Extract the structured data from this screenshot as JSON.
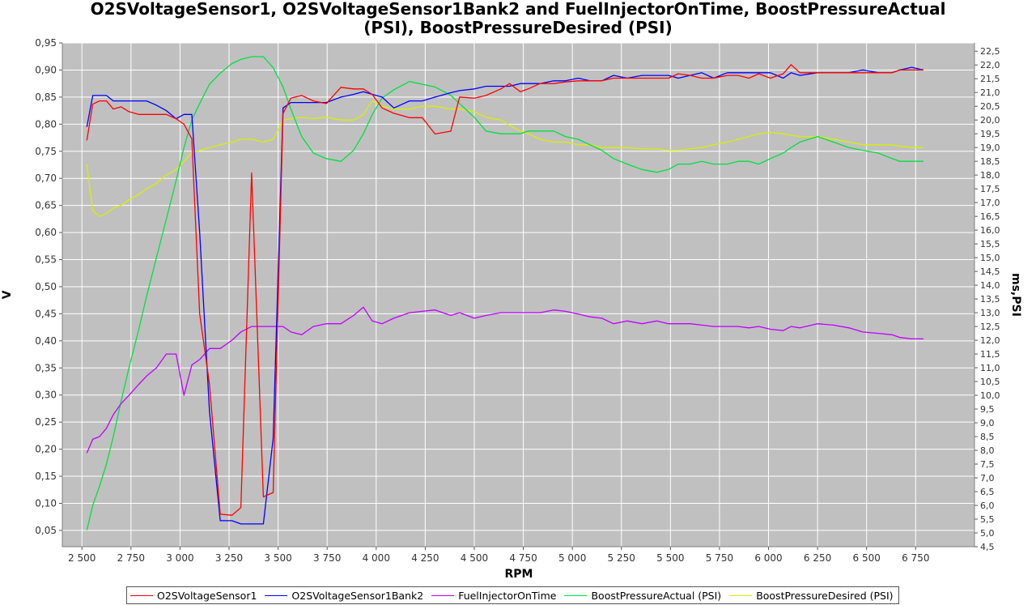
{
  "chart_data": {
    "type": "line",
    "title_line1": "O2SVoltageSensor1, O2SVoltageSensor1Bank2 and FuelInjectorOnTime, BoostPressureActual",
    "title_line2": "(PSI), BoostPressureDesired (PSI)",
    "xlabel": "RPM",
    "ylabel_left": "V",
    "ylabel_right": "ms,PSI",
    "xlim": [
      2400,
      7050
    ],
    "ylim_left": [
      0.02,
      0.95
    ],
    "ylim_right": [
      4.5,
      22.8
    ],
    "x_ticks": [
      2500,
      2750,
      3000,
      3250,
      3500,
      3750,
      4000,
      4250,
      4500,
      4750,
      5000,
      5250,
      5500,
      5750,
      6000,
      6250,
      6500,
      6750
    ],
    "x_tick_labels": [
      "2 500",
      "2 750",
      "3 000",
      "3 250",
      "3 500",
      "3 750",
      "4 000",
      "4 250",
      "4 500",
      "4 750",
      "5 000",
      "5 250",
      "5 500",
      "5 750",
      "6 000",
      "6 250",
      "6 500",
      "6 750"
    ],
    "y_left_ticks": [
      0.05,
      0.1,
      0.15,
      0.2,
      0.25,
      0.3,
      0.35,
      0.4,
      0.45,
      0.5,
      0.55,
      0.6,
      0.65,
      0.7,
      0.75,
      0.8,
      0.85,
      0.9,
      0.95
    ],
    "y_left_tick_labels": [
      "0,05",
      "0,10",
      "0,15",
      "0,20",
      "0,25",
      "0,30",
      "0,35",
      "0,40",
      "0,45",
      "0,50",
      "0,55",
      "0,60",
      "0,65",
      "0,70",
      "0,75",
      "0,80",
      "0,85",
      "0,90",
      "0,95"
    ],
    "y_right_ticks": [
      4.5,
      5.0,
      5.5,
      6.0,
      6.5,
      7.0,
      7.5,
      8.0,
      8.5,
      9.0,
      9.5,
      10.0,
      10.5,
      11.0,
      11.5,
      12.0,
      12.5,
      13.0,
      13.5,
      14.0,
      14.5,
      15.0,
      15.5,
      16.0,
      16.5,
      17.0,
      17.5,
      18.0,
      18.5,
      19.0,
      19.5,
      20.0,
      20.5,
      21.0,
      21.5,
      22.0,
      22.5
    ],
    "y_right_tick_labels": [
      "4,5",
      "5,0",
      "5,5",
      "6,0",
      "6,5",
      "7,0",
      "7,5",
      "8,0",
      "8,5",
      "9,0",
      "9,5",
      "10,0",
      "10,5",
      "11,0",
      "11,5",
      "12,0",
      "12,5",
      "13,0",
      "13,5",
      "14,0",
      "14,5",
      "15,0",
      "15,5",
      "16,0",
      "16,5",
      "17,0",
      "17,5",
      "18,0",
      "18,5",
      "19,0",
      "19,5",
      "20,0",
      "20,5",
      "21,0",
      "21,5",
      "22,0",
      "22,5"
    ],
    "grid": true,
    "legend_position": "bottom",
    "plot_background": "#c0c0c0",
    "grid_color": "#ffffff",
    "series": [
      {
        "name": "O2SVoltageSensor1",
        "color": "#ff0000",
        "axis": "left",
        "x": [
          2525,
          2555,
          2590,
          2625,
          2660,
          2700,
          2740,
          2790,
          2830,
          2880,
          2930,
          2980,
          3020,
          3060,
          3100,
          3150,
          3205,
          3265,
          3310,
          3365,
          3425,
          3475,
          3525,
          3565,
          3620,
          3680,
          3745,
          3820,
          3885,
          3935,
          3980,
          4030,
          4090,
          4170,
          4235,
          4300,
          4380,
          4425,
          4500,
          4560,
          4635,
          4680,
          4735,
          4775,
          4835,
          4905,
          4965,
          5030,
          5090,
          5150,
          5210,
          5280,
          5355,
          5430,
          5490,
          5540,
          5600,
          5660,
          5720,
          5790,
          5845,
          5900,
          5950,
          6010,
          6075,
          6115,
          6160,
          6250,
          6330,
          6410,
          6480,
          6560,
          6630,
          6670,
          6730,
          6790
        ],
        "y": [
          0.77,
          0.837,
          0.843,
          0.843,
          0.828,
          0.832,
          0.823,
          0.818,
          0.818,
          0.818,
          0.818,
          0.81,
          0.8,
          0.773,
          0.45,
          0.32,
          0.08,
          0.078,
          0.092,
          0.71,
          0.112,
          0.12,
          0.82,
          0.848,
          0.853,
          0.843,
          0.838,
          0.868,
          0.865,
          0.865,
          0.855,
          0.83,
          0.82,
          0.812,
          0.812,
          0.782,
          0.787,
          0.85,
          0.848,
          0.853,
          0.865,
          0.875,
          0.86,
          0.865,
          0.875,
          0.875,
          0.878,
          0.88,
          0.88,
          0.88,
          0.885,
          0.885,
          0.885,
          0.885,
          0.885,
          0.893,
          0.89,
          0.885,
          0.885,
          0.89,
          0.89,
          0.885,
          0.893,
          0.885,
          0.893,
          0.91,
          0.895,
          0.895,
          0.895,
          0.895,
          0.895,
          0.895,
          0.895,
          0.9,
          0.9,
          0.9
        ]
      },
      {
        "name": "O2SVoltageSensor1Bank2",
        "color": "#0000ff",
        "axis": "left",
        "x": [
          2525,
          2555,
          2590,
          2625,
          2660,
          2700,
          2740,
          2790,
          2830,
          2880,
          2930,
          2980,
          3020,
          3060,
          3100,
          3150,
          3205,
          3265,
          3310,
          3365,
          3425,
          3475,
          3525,
          3565,
          3620,
          3680,
          3745,
          3820,
          3885,
          3935,
          3980,
          4030,
          4090,
          4170,
          4235,
          4300,
          4380,
          4425,
          4500,
          4560,
          4635,
          4680,
          4735,
          4775,
          4835,
          4905,
          4965,
          5030,
          5090,
          5150,
          5210,
          5280,
          5355,
          5430,
          5490,
          5540,
          5600,
          5660,
          5720,
          5790,
          5845,
          5900,
          5950,
          6010,
          6075,
          6115,
          6160,
          6250,
          6330,
          6410,
          6480,
          6560,
          6630,
          6670,
          6730,
          6790
        ],
        "y": [
          0.795,
          0.853,
          0.853,
          0.853,
          0.843,
          0.843,
          0.843,
          0.843,
          0.843,
          0.835,
          0.825,
          0.81,
          0.818,
          0.818,
          0.6,
          0.27,
          0.068,
          0.068,
          0.062,
          0.062,
          0.062,
          0.22,
          0.83,
          0.84,
          0.84,
          0.84,
          0.84,
          0.85,
          0.855,
          0.86,
          0.855,
          0.85,
          0.83,
          0.843,
          0.843,
          0.85,
          0.858,
          0.862,
          0.865,
          0.87,
          0.87,
          0.87,
          0.875,
          0.875,
          0.875,
          0.88,
          0.88,
          0.885,
          0.88,
          0.88,
          0.89,
          0.885,
          0.89,
          0.89,
          0.89,
          0.885,
          0.89,
          0.895,
          0.885,
          0.895,
          0.895,
          0.895,
          0.895,
          0.895,
          0.885,
          0.895,
          0.89,
          0.895,
          0.895,
          0.895,
          0.9,
          0.895,
          0.895,
          0.9,
          0.905,
          0.9
        ]
      },
      {
        "name": "FuelInjectorOnTime",
        "color": "#c000ff",
        "axis": "right",
        "x": [
          2525,
          2555,
          2590,
          2625,
          2660,
          2700,
          2740,
          2790,
          2830,
          2880,
          2930,
          2980,
          3020,
          3060,
          3100,
          3150,
          3205,
          3265,
          3310,
          3365,
          3425,
          3475,
          3525,
          3565,
          3620,
          3680,
          3745,
          3820,
          3885,
          3935,
          3980,
          4030,
          4090,
          4170,
          4235,
          4300,
          4380,
          4425,
          4500,
          4560,
          4635,
          4680,
          4735,
          4775,
          4835,
          4905,
          4965,
          5030,
          5090,
          5150,
          5210,
          5280,
          5355,
          5430,
          5490,
          5540,
          5600,
          5660,
          5720,
          5790,
          5845,
          5900,
          5950,
          6010,
          6075,
          6115,
          6160,
          6250,
          6330,
          6410,
          6480,
          6560,
          6630,
          6670,
          6730,
          6790
        ],
        "y": [
          7.9,
          8.4,
          8.5,
          8.8,
          9.3,
          9.7,
          10.0,
          10.4,
          10.7,
          11.0,
          11.5,
          11.5,
          10.0,
          11.1,
          11.3,
          11.7,
          11.7,
          12.0,
          12.3,
          12.5,
          12.5,
          12.5,
          12.5,
          12.3,
          12.2,
          12.5,
          12.6,
          12.6,
          12.9,
          13.2,
          12.7,
          12.6,
          12.8,
          13.0,
          13.05,
          13.1,
          12.9,
          13.0,
          12.8,
          12.9,
          13.0,
          13.0,
          13.0,
          13.0,
          13.0,
          13.1,
          13.05,
          12.95,
          12.85,
          12.8,
          12.6,
          12.7,
          12.6,
          12.7,
          12.6,
          12.6,
          12.6,
          12.55,
          12.5,
          12.5,
          12.5,
          12.45,
          12.5,
          12.4,
          12.35,
          12.5,
          12.45,
          12.6,
          12.55,
          12.45,
          12.3,
          12.25,
          12.2,
          12.1,
          12.05,
          12.05
        ]
      },
      {
        "name": "BoostPressureActual (PSI)",
        "color": "#00e040",
        "axis": "right",
        "x": [
          2525,
          2555,
          2590,
          2625,
          2660,
          2700,
          2740,
          2790,
          2830,
          2880,
          2930,
          2980,
          3020,
          3060,
          3100,
          3150,
          3205,
          3265,
          3310,
          3365,
          3425,
          3475,
          3525,
          3565,
          3620,
          3680,
          3745,
          3820,
          3885,
          3935,
          3980,
          4030,
          4090,
          4170,
          4235,
          4300,
          4380,
          4425,
          4500,
          4560,
          4635,
          4680,
          4735,
          4775,
          4835,
          4905,
          4965,
          5030,
          5090,
          5150,
          5210,
          5280,
          5355,
          5430,
          5490,
          5540,
          5600,
          5660,
          5720,
          5790,
          5845,
          5900,
          5950,
          6010,
          6075,
          6115,
          6160,
          6250,
          6330,
          6410,
          6480,
          6560,
          6630,
          6670,
          6730,
          6790
        ],
        "y": [
          5.1,
          6.0,
          6.7,
          7.5,
          8.5,
          9.8,
          11.0,
          12.4,
          13.6,
          15.0,
          16.4,
          17.8,
          19.0,
          20.0,
          20.6,
          21.3,
          21.7,
          22.05,
          22.2,
          22.3,
          22.3,
          21.9,
          21.2,
          20.4,
          19.4,
          18.8,
          18.6,
          18.5,
          18.9,
          19.5,
          20.2,
          20.8,
          21.1,
          21.4,
          21.3,
          21.2,
          20.9,
          20.6,
          20.1,
          19.6,
          19.5,
          19.5,
          19.5,
          19.6,
          19.6,
          19.6,
          19.4,
          19.3,
          19.1,
          18.9,
          18.6,
          18.4,
          18.2,
          18.1,
          18.2,
          18.4,
          18.4,
          18.5,
          18.4,
          18.4,
          18.5,
          18.5,
          18.4,
          18.6,
          18.8,
          19.0,
          19.2,
          19.4,
          19.2,
          19.0,
          18.9,
          18.8,
          18.6,
          18.5,
          18.5,
          18.5
        ]
      },
      {
        "name": "BoostPressureDesired (PSI)",
        "color": "#d8f000",
        "axis": "right",
        "x": [
          2525,
          2555,
          2590,
          2625,
          2660,
          2700,
          2740,
          2790,
          2830,
          2880,
          2930,
          2980,
          3020,
          3060,
          3100,
          3150,
          3205,
          3265,
          3310,
          3365,
          3425,
          3475,
          3525,
          3565,
          3620,
          3680,
          3745,
          3820,
          3885,
          3935,
          3980,
          4030,
          4090,
          4170,
          4235,
          4300,
          4380,
          4425,
          4500,
          4560,
          4635,
          4680,
          4735,
          4775,
          4835,
          4905,
          4965,
          5030,
          5090,
          5150,
          5210,
          5280,
          5355,
          5430,
          5490,
          5540,
          5600,
          5660,
          5720,
          5790,
          5845,
          5900,
          5950,
          6010,
          6075,
          6115,
          6160,
          6250,
          6330,
          6410,
          6480,
          6560,
          6630,
          6670,
          6730,
          6790
        ],
        "y": [
          18.4,
          16.7,
          16.5,
          16.6,
          16.8,
          16.9,
          17.1,
          17.3,
          17.5,
          17.7,
          18.0,
          18.2,
          18.5,
          18.8,
          18.9,
          19.0,
          19.1,
          19.2,
          19.3,
          19.3,
          19.2,
          19.3,
          20.0,
          20.05,
          20.1,
          20.05,
          20.1,
          20.0,
          20.0,
          20.2,
          20.7,
          20.5,
          20.4,
          20.4,
          20.5,
          20.5,
          20.4,
          20.4,
          20.3,
          20.1,
          20.0,
          19.8,
          19.6,
          19.5,
          19.3,
          19.2,
          19.2,
          19.1,
          19.1,
          19.0,
          19.0,
          19.0,
          18.95,
          18.95,
          18.9,
          18.9,
          18.95,
          19.0,
          19.1,
          19.2,
          19.3,
          19.4,
          19.5,
          19.55,
          19.5,
          19.45,
          19.4,
          19.4,
          19.3,
          19.2,
          19.1,
          19.1,
          19.1,
          19.05,
          19.0,
          19.0
        ]
      }
    ]
  }
}
